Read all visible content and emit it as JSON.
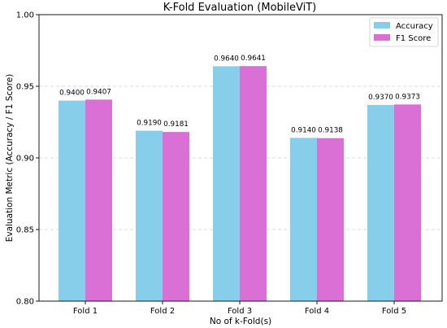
{
  "chart_data": {
    "type": "bar",
    "title": "K-Fold Evaluation (MobileViT)",
    "xlabel": "No of k-Fold(s)",
    "ylabel": "Evaluation Metric (Accuracy / F1 Score)",
    "categories": [
      "Fold 1",
      "Fold 2",
      "Fold 3",
      "Fold 4",
      "Fold 5"
    ],
    "ylim": [
      0.8,
      1.0
    ],
    "yticks": [
      "0.80",
      "0.85",
      "0.90",
      "0.95",
      "1.00"
    ],
    "grid": true,
    "legend_position": "top-right",
    "series": [
      {
        "name": "Accuracy",
        "color": "#87ceeb",
        "values": [
          0.94,
          0.919,
          0.964,
          0.914,
          0.937
        ],
        "labels": [
          "0.9400",
          "0.9190",
          "0.9640",
          "0.9140",
          "0.9370"
        ]
      },
      {
        "name": "F1 Score",
        "color": "#da70d6",
        "values": [
          0.9407,
          0.9181,
          0.9641,
          0.9138,
          0.9373
        ],
        "labels": [
          "0.9407",
          "0.9181",
          "0.9641",
          "0.9138",
          "0.9373"
        ]
      }
    ]
  }
}
